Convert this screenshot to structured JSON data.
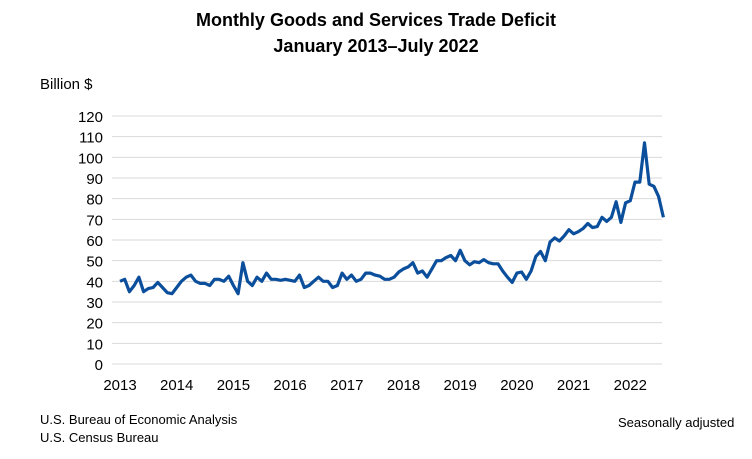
{
  "chart_data": {
    "type": "line",
    "title": "Monthly Goods and Services Trade Deficit",
    "subtitle": "January 2013–July 2022",
    "ylabel": "Billion $",
    "xlabel": "",
    "ylim": [
      0,
      120
    ],
    "yticks": [
      0,
      10,
      20,
      30,
      40,
      50,
      60,
      70,
      80,
      90,
      100,
      110,
      120
    ],
    "xticks": [
      "2013",
      "2014",
      "2015",
      "2016",
      "2017",
      "2018",
      "2019",
      "2020",
      "2021",
      "2022"
    ],
    "grid": "horizontal",
    "start": "2013-01",
    "frequency": "monthly",
    "color": "#0b4f9c",
    "values": [
      40,
      41,
      35,
      38,
      42,
      35,
      36.5,
      37,
      39.5,
      37,
      34.5,
      34,
      37,
      40,
      42,
      43,
      40,
      39,
      39,
      38,
      41,
      41,
      40,
      42.5,
      38,
      34,
      49,
      40,
      38,
      42,
      40,
      44,
      41,
      41,
      40.5,
      41,
      40.5,
      40,
      43,
      37,
      38,
      40,
      42,
      40,
      40,
      37,
      38,
      44,
      41,
      43,
      40,
      41,
      44,
      44,
      43,
      42.5,
      41,
      41,
      42,
      44.5,
      46,
      47,
      49,
      44,
      45,
      42,
      46,
      50,
      50,
      51.5,
      52.5,
      50,
      55,
      50,
      48,
      49.5,
      49,
      50.5,
      49,
      48.5,
      48.5,
      45,
      42,
      39.5,
      44,
      44.5,
      41,
      45,
      52,
      54.5,
      50,
      59,
      61,
      59.5,
      62,
      65,
      63,
      64,
      65.5,
      68,
      66,
      66.5,
      71,
      69,
      71,
      78.5,
      68.5,
      78,
      79,
      88,
      88,
      107,
      87,
      86,
      81,
      71
    ]
  },
  "source_lines": [
    "U.S. Bureau of Economic Analysis",
    "U.S. Census Bureau"
  ],
  "note": "Seasonally adjusted"
}
